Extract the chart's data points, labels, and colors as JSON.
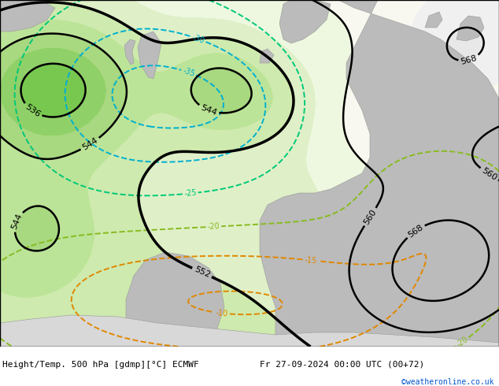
{
  "title_left": "Height/Temp. 500 hPa [gdmp][°C] ECMWF",
  "title_right": "Fr 27-09-2024 00:00 UTC (00+72)",
  "credit": "©weatheronline.co.uk",
  "contour_color_black": "#000000",
  "contour_color_cyan": "#00b0d0",
  "contour_color_teal": "#00c878",
  "contour_color_green_yellow": "#88bb20",
  "contour_color_orange": "#e08800",
  "label_fontsize": 7,
  "title_fontsize": 8,
  "figsize": [
    6.34,
    4.9
  ],
  "dpi": 100,
  "fill_colors": [
    "#60b840",
    "#78c850",
    "#90d068",
    "#a8d880",
    "#bce498",
    "#ceeaae",
    "#dff0c8",
    "#eef8e0",
    "#f8f8f0",
    "#f0f0f0",
    "#e8e8e8",
    "#e0e0e0",
    "#d8d8d8"
  ],
  "fill_levels": [
    528,
    532,
    536,
    540,
    544,
    548,
    552,
    556,
    560,
    564,
    568,
    572,
    576,
    584
  ]
}
